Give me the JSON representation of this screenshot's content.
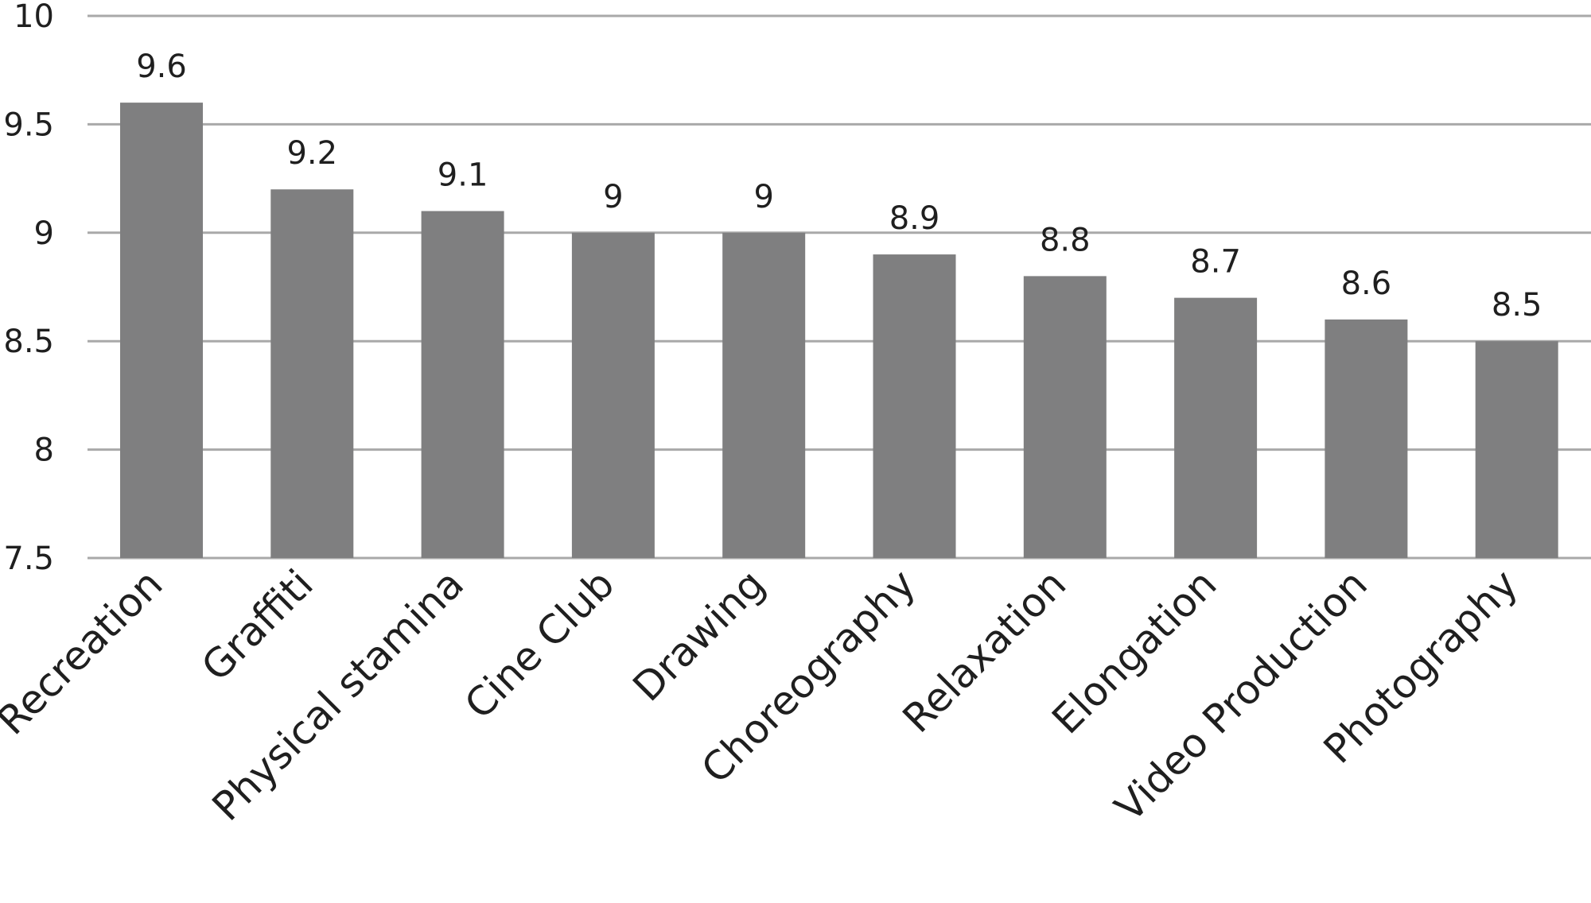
{
  "chart_data": {
    "type": "bar",
    "title": "",
    "xlabel": "",
    "ylabel": "",
    "categories": [
      "Recreation",
      "Graffiti",
      "Physical stamina",
      "Cine Club",
      "Drawing",
      "Choreography",
      "Relaxation",
      "Elongation",
      "Video Production",
      "Photography"
    ],
    "values": [
      9.6,
      9.2,
      9.1,
      9,
      9,
      8.9,
      8.8,
      8.7,
      8.6,
      8.5
    ],
    "data_labels": [
      "9.6",
      "9.2",
      "9.1",
      "9",
      "9",
      "8.9",
      "8.8",
      "8.7",
      "8.6",
      "8.5"
    ],
    "ylim": [
      7.5,
      10
    ],
    "yticks": [
      7.5,
      8,
      8.5,
      9,
      9.5,
      10
    ],
    "ytick_labels": [
      "7.5",
      "8",
      "8.5",
      "9",
      "9.5",
      "10"
    ],
    "grid": true,
    "legend": "none",
    "bar_color": "#7f7f80",
    "grid_color": "#a9a9a9"
  }
}
